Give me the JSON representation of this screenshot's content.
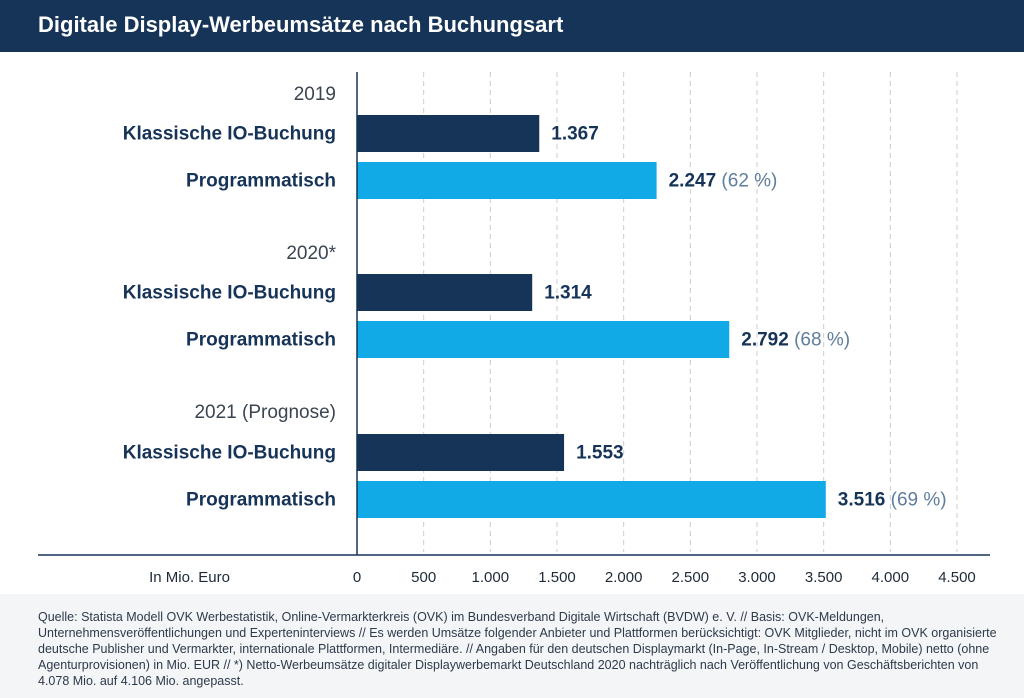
{
  "header": {
    "title": "Digitale Display-Werbeumsätze nach Buchungsart"
  },
  "colors": {
    "header_bg": "#163358",
    "classic": "#163358",
    "programmatic": "#12a9e7",
    "grid": "#c9cdd4"
  },
  "chart_data": {
    "type": "bar",
    "orientation": "horizontal",
    "title": "Digitale Display-Werbeumsätze nach Buchungsart",
    "xlabel": "In Mio. Euro",
    "xlim": [
      0,
      4500
    ],
    "ticks": [
      0,
      500,
      1000,
      1500,
      2000,
      2500,
      3000,
      3500,
      4000,
      4500
    ],
    "tick_labels": [
      "0",
      "500",
      "1.000",
      "1.500",
      "2.000",
      "2.500",
      "3.000",
      "3.500",
      "4.000",
      "4.500"
    ],
    "grid": true,
    "groups": [
      {
        "label": "2019",
        "bars": [
          {
            "category": "Klassische IO-Buchung",
            "value": 1367,
            "value_label": "1.367",
            "share_label": ""
          },
          {
            "category": "Programmatisch",
            "value": 2247,
            "value_label": "2.247",
            "share_label": "(62 %)"
          }
        ]
      },
      {
        "label": "2020*",
        "bars": [
          {
            "category": "Klassische IO-Buchung",
            "value": 1314,
            "value_label": "1.314",
            "share_label": ""
          },
          {
            "category": "Programmatisch",
            "value": 2792,
            "value_label": "2.792",
            "share_label": "(68 %)"
          }
        ]
      },
      {
        "label": "2021 (Prognose)",
        "bars": [
          {
            "category": "Klassische IO-Buchung",
            "value": 1553,
            "value_label": "1.553",
            "share_label": ""
          },
          {
            "category": "Programmatisch",
            "value": 3516,
            "value_label": "3.516",
            "share_label": "(69 %)"
          }
        ]
      }
    ]
  },
  "source": {
    "text": "Quelle: Statista Modell OVK Werbestatistik, Online-Vermarkterkreis (OVK) im Bundesverband Digitale Wirtschaft (BVDW) e. V. // Basis: OVK-Meldungen, Unternehmensveröffentlichungen und Experteninterviews // Es werden Umsätze folgender Anbieter und Plattformen berücksichtigt: OVK Mitglieder, nicht im OVK organisierte deutsche Publisher und Vermarkter, internationale Plattformen, Intermediäre. // Angaben für den deutschen Displaymarkt (In-Page, In-Stream / Desktop, Mobile) netto (ohne Agenturprovisionen) in Mio. EUR // *) Netto-Werbeumsätze digitaler Displaywerbemarkt Deutschland 2020 nachträglich nach Veröffentlichung von Geschäftsberichten von 4.078 Mio. auf 4.106 Mio. angepasst."
  }
}
